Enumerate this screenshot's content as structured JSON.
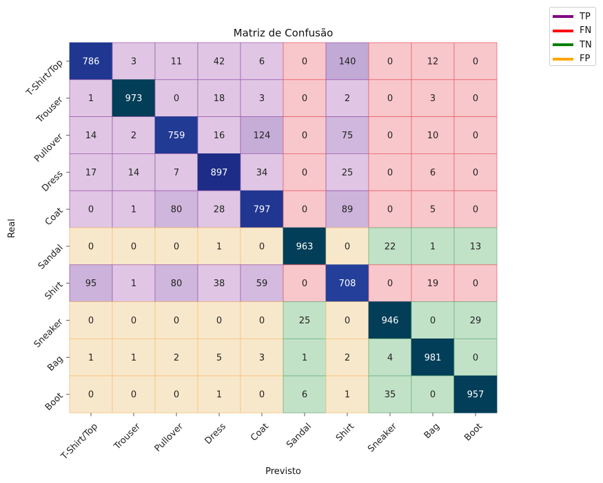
{
  "chart_data": {
    "type": "heatmap",
    "title": "Matriz de Confusão",
    "xlabel": "Previsto",
    "ylabel": "Real",
    "x_categories": [
      "T-Shirt/Top",
      "Trouser",
      "Pullover",
      "Dress",
      "Coat",
      "Sandal",
      "Shirt",
      "Sneaker",
      "Bag",
      "Boot"
    ],
    "y_categories": [
      "T-Shirt/Top",
      "Trouser",
      "Pullover",
      "Dress",
      "Coat",
      "Sandal",
      "Shirt",
      "Sneaker",
      "Bag",
      "Boot"
    ],
    "values": [
      [
        786,
        3,
        11,
        42,
        6,
        0,
        140,
        0,
        12,
        0
      ],
      [
        1,
        973,
        0,
        18,
        3,
        0,
        2,
        0,
        3,
        0
      ],
      [
        14,
        2,
        759,
        16,
        124,
        0,
        75,
        0,
        10,
        0
      ],
      [
        17,
        14,
        7,
        897,
        34,
        0,
        25,
        0,
        6,
        0
      ],
      [
        0,
        1,
        80,
        28,
        797,
        0,
        89,
        0,
        5,
        0
      ],
      [
        0,
        0,
        0,
        1,
        0,
        963,
        0,
        22,
        1,
        13
      ],
      [
        95,
        1,
        80,
        38,
        59,
        0,
        708,
        0,
        19,
        0
      ],
      [
        0,
        0,
        0,
        0,
        0,
        25,
        0,
        946,
        0,
        29
      ],
      [
        1,
        1,
        2,
        5,
        3,
        1,
        2,
        4,
        981,
        0
      ],
      [
        0,
        0,
        0,
        1,
        0,
        6,
        1,
        35,
        0,
        957
      ]
    ],
    "region_legend": [
      {
        "label": "TP",
        "color": "#800080"
      },
      {
        "label": "FN",
        "color": "#ff0000"
      },
      {
        "label": "TN",
        "color": "#008000"
      },
      {
        "label": "FP",
        "color": "#ffa500"
      }
    ],
    "legend_position": "outside top-right",
    "colors": {
      "diag_dark": "#023e58",
      "diag_mid": "#23409a",
      "purple_region": "#e0c6e4",
      "red_region": "#f8c7cb",
      "green_region": "#c2e2c8",
      "orange_region": "#f8e8cb"
    }
  }
}
